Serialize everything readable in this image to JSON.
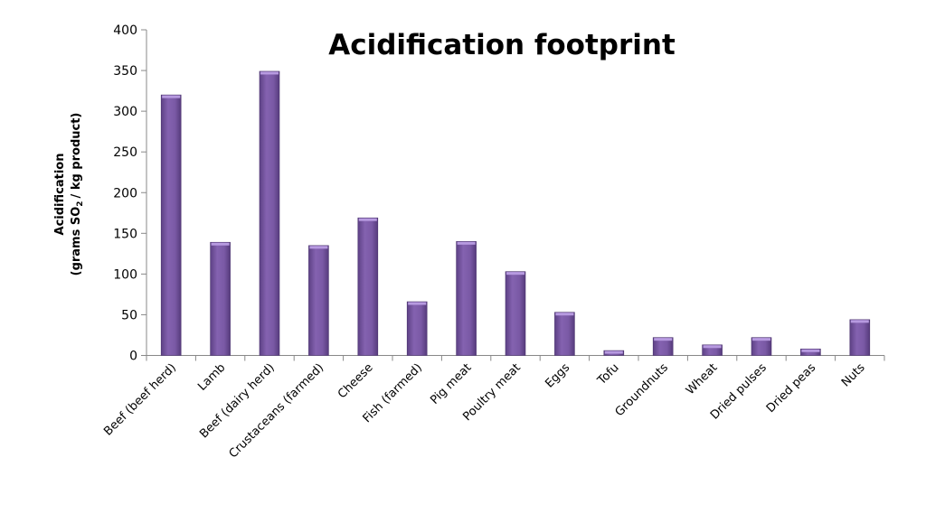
{
  "chart_data": {
    "type": "bar",
    "title": "Acidification footprint",
    "ylabel_line1": "Acidification",
    "ylabel_line2_pre": "(grams SO",
    "ylabel_sub": "2",
    "ylabel_line2_post": "/ kg product)",
    "xlabel": "",
    "ylim": [
      0,
      400
    ],
    "yticks": [
      0,
      50,
      100,
      150,
      200,
      250,
      300,
      350,
      400
    ],
    "grid": false,
    "bar_color": "#7B5AA6",
    "categories": [
      "Beef (beef herd)",
      "Lamb",
      "Beef (dairy herd)",
      "Crustaceans (farmed)",
      "Cheese",
      "Fish (farmed)",
      "Pig meat",
      "Poultry meat",
      "Eggs",
      "Tofu",
      "Groundnuts",
      "Wheat",
      "Dried pulses",
      "Dried peas",
      "Nuts"
    ],
    "values": [
      320,
      139,
      349,
      135,
      169,
      66,
      140,
      103,
      53,
      6,
      22,
      13,
      22,
      8,
      44
    ]
  }
}
